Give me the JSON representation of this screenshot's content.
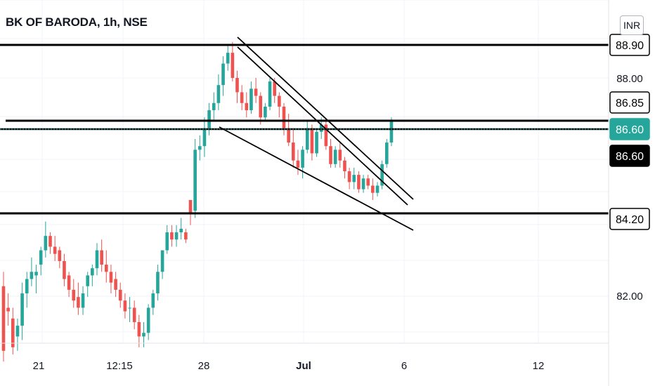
{
  "chart_title": "BK OF BARODA, 1h, NSE",
  "currency_button": "INR",
  "colors": {
    "up": "#26a69a",
    "down": "#ef5350",
    "line": "#000000",
    "axis_text": "#131722"
  },
  "chart_data": {
    "type": "candlestick",
    "title": "BK OF BARODA, 1h, NSE",
    "x_ticks": [
      "21",
      "12:15",
      "28",
      "Jul",
      "6",
      "12"
    ],
    "bold_x_ticks": [
      "Jul"
    ],
    "y_ticks": [
      82.0,
      88.0
    ],
    "price_labels": [
      {
        "text": "88.90",
        "style": "outline"
      },
      {
        "text": "86.85",
        "style": "outline"
      },
      {
        "text": "86.60",
        "style": "filled"
      },
      {
        "text": "86.60",
        "style": "dark"
      },
      {
        "text": "84.20",
        "style": "outline"
      }
    ],
    "horizontal_levels": [
      88.9,
      86.85,
      86.6,
      84.2
    ],
    "candles": [
      [
        82.2,
        82.6,
        80.1,
        80.4
      ],
      [
        81.6,
        82.0,
        81.1,
        81.5
      ],
      [
        81.3,
        81.6,
        80.3,
        80.5
      ],
      [
        80.8,
        81.3,
        80.4,
        81.1
      ],
      [
        81.1,
        82.3,
        80.7,
        82.0
      ],
      [
        82.0,
        82.6,
        81.6,
        82.4
      ],
      [
        82.4,
        83.0,
        82.2,
        82.6
      ],
      [
        82.5,
        82.8,
        82.0,
        82.6
      ],
      [
        82.8,
        83.3,
        82.5,
        83.2
      ],
      [
        83.2,
        84.0,
        83.0,
        83.6
      ],
      [
        83.6,
        83.7,
        83.1,
        83.3
      ],
      [
        83.3,
        83.6,
        82.9,
        83.1
      ],
      [
        83.2,
        83.3,
        82.7,
        82.9
      ],
      [
        82.9,
        83.1,
        82.2,
        82.4
      ],
      [
        82.5,
        82.6,
        81.9,
        82.1
      ],
      [
        82.1,
        82.4,
        81.6,
        81.8
      ],
      [
        81.9,
        82.3,
        81.4,
        81.6
      ],
      [
        81.6,
        82.2,
        81.4,
        82.0
      ],
      [
        82.2,
        82.6,
        81.9,
        82.5
      ],
      [
        82.5,
        82.8,
        82.2,
        82.7
      ],
      [
        82.7,
        83.4,
        82.5,
        83.2
      ],
      [
        83.2,
        83.5,
        82.6,
        82.8
      ],
      [
        82.8,
        83.2,
        82.3,
        82.6
      ],
      [
        82.6,
        82.8,
        82.0,
        82.3
      ],
      [
        82.4,
        82.6,
        81.9,
        82.1
      ],
      [
        82.1,
        82.3,
        81.6,
        81.8
      ],
      [
        81.8,
        82.0,
        81.3,
        81.5
      ],
      [
        81.6,
        81.9,
        81.2,
        81.6
      ],
      [
        81.6,
        81.8,
        81.0,
        81.2
      ],
      [
        81.2,
        81.4,
        80.5,
        80.8
      ],
      [
        80.8,
        81.2,
        80.5,
        80.9
      ],
      [
        80.9,
        81.7,
        80.7,
        81.6
      ],
      [
        81.6,
        82.1,
        81.4,
        82.0
      ],
      [
        82.0,
        82.8,
        81.8,
        82.6
      ],
      [
        82.6,
        83.2,
        82.4,
        83.2
      ],
      [
        83.2,
        83.9,
        83.1,
        83.7
      ],
      [
        83.7,
        83.9,
        83.3,
        83.5
      ],
      [
        83.5,
        83.9,
        83.3,
        83.7
      ],
      [
        83.7,
        84.1,
        83.5,
        83.8
      ],
      [
        83.7,
        83.8,
        83.4,
        83.5
      ],
      [
        84.6,
        84.6,
        83.9,
        84.2
      ],
      [
        84.3,
        86.3,
        84.1,
        86.0
      ],
      [
        86.0,
        86.4,
        85.7,
        86.1
      ],
      [
        86.1,
        86.9,
        85.8,
        86.6
      ],
      [
        86.6,
        87.3,
        86.4,
        87.1
      ],
      [
        87.1,
        87.6,
        86.8,
        87.3
      ],
      [
        87.3,
        88.1,
        87.1,
        87.8
      ],
      [
        87.8,
        88.6,
        87.5,
        88.4
      ],
      [
        88.4,
        88.9,
        88.2,
        88.7
      ],
      [
        88.7,
        89.0,
        87.9,
        88.0
      ],
      [
        88.0,
        88.2,
        87.3,
        87.6
      ],
      [
        87.6,
        87.8,
        87.1,
        87.3
      ],
      [
        87.3,
        87.6,
        86.9,
        87.1
      ],
      [
        87.1,
        87.9,
        87.0,
        87.7
      ],
      [
        87.7,
        88.0,
        87.3,
        87.5
      ],
      [
        87.5,
        87.6,
        86.7,
        86.9
      ],
      [
        86.9,
        87.3,
        86.8,
        87.2
      ],
      [
        87.2,
        88.0,
        87.1,
        87.9
      ],
      [
        87.9,
        88.0,
        87.3,
        87.5
      ],
      [
        87.5,
        87.6,
        86.9,
        87.2
      ],
      [
        87.2,
        87.3,
        86.4,
        86.6
      ],
      [
        86.6,
        87.0,
        86.1,
        86.2
      ],
      [
        86.2,
        86.6,
        85.5,
        85.7
      ],
      [
        85.7,
        86.0,
        85.3,
        85.5
      ],
      [
        85.5,
        86.1,
        85.2,
        86.0
      ],
      [
        86.0,
        86.8,
        85.9,
        86.6
      ],
      [
        86.6,
        86.7,
        85.7,
        85.9
      ],
      [
        85.9,
        86.6,
        85.8,
        86.5
      ],
      [
        86.5,
        86.9,
        86.3,
        86.7
      ],
      [
        86.7,
        86.8,
        86.0,
        86.1
      ],
      [
        86.1,
        86.3,
        85.5,
        85.6
      ],
      [
        85.6,
        86.1,
        85.5,
        86.0
      ],
      [
        86.0,
        86.2,
        85.5,
        85.7
      ],
      [
        85.7,
        85.8,
        85.2,
        85.4
      ],
      [
        85.4,
        85.5,
        84.9,
        85.1
      ],
      [
        85.1,
        85.5,
        84.9,
        85.3
      ],
      [
        85.3,
        85.4,
        84.8,
        84.9
      ],
      [
        84.9,
        85.3,
        84.8,
        85.2
      ],
      [
        85.2,
        85.3,
        84.9,
        85.0
      ],
      [
        85.0,
        85.2,
        84.6,
        84.8
      ],
      [
        84.8,
        85.1,
        84.7,
        85.0
      ],
      [
        85.0,
        85.7,
        84.9,
        85.6
      ],
      [
        85.6,
        86.3,
        85.5,
        86.2
      ],
      [
        86.2,
        86.9,
        86.1,
        86.8
      ]
    ]
  }
}
